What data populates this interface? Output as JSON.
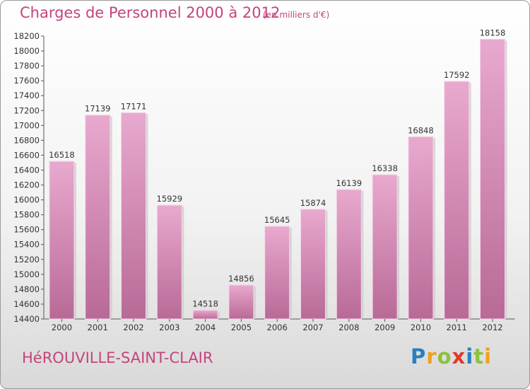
{
  "title": "Charges de Personnel 2000 à 2012",
  "subtitle": "(en milliers d'€)",
  "town": "HéROUVILLE-SAINT-CLAIR",
  "brand": {
    "letters": [
      "P",
      "r",
      "o",
      "x",
      "i",
      "t",
      "i"
    ],
    "colors": [
      "#2a7fc1",
      "#f0a020",
      "#8cc23c",
      "#e23a2a",
      "#2a7fc1",
      "#8cc23c",
      "#f0a020"
    ]
  },
  "colors": {
    "bar_top": "#e9a9cf",
    "bar_bottom": "#b86a96",
    "text": "#c3447e"
  },
  "chart_data": {
    "type": "bar",
    "categories": [
      "2000",
      "2001",
      "2002",
      "2003",
      "2004",
      "2005",
      "2006",
      "2007",
      "2008",
      "2009",
      "2010",
      "2011",
      "2012"
    ],
    "values": [
      16518,
      17139,
      17171,
      15929,
      14518,
      14856,
      15645,
      15874,
      16139,
      16338,
      16848,
      17592,
      18158
    ],
    "title": "Charges de Personnel 2000 à 2012",
    "xlabel": "",
    "ylabel": "",
    "ylim": [
      14400,
      18200
    ],
    "yticks": [
      14400,
      14600,
      14800,
      15000,
      15200,
      15400,
      15600,
      15800,
      16000,
      16200,
      16400,
      16600,
      16800,
      17000,
      17200,
      17400,
      17600,
      17800,
      18000,
      18200
    ],
    "grid": false,
    "data_labels": true
  }
}
